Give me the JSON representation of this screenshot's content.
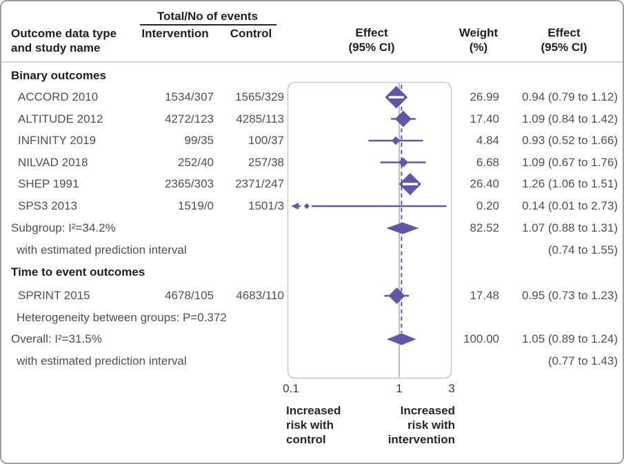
{
  "header": {
    "events_group": "Total/No of events",
    "outcome_line1": "Outcome data type",
    "outcome_line2": "and study name",
    "intervention": "Intervention",
    "control": "Control",
    "effect_plot_line1": "Effect",
    "effect_plot_line2": "(95% CI)",
    "weight_line1": "Weight",
    "weight_line2": "(%)",
    "effect_text_line1": "Effect",
    "effect_text_line2": "(95% CI)"
  },
  "axis": {
    "ticks": [
      "0.1",
      "1",
      "3"
    ],
    "left_caption_lines": [
      "Increased",
      "risk with",
      "control"
    ],
    "right_caption_lines": [
      "Increased",
      "risk with",
      "intervention"
    ]
  },
  "colors": {
    "accent": "#6456a5",
    "box_border": "#c7c7c7",
    "ref_line": "#a8a8a8",
    "divider": "#d6d6d6",
    "text": "#4f4f50",
    "heading_text": "#1e1e1e"
  },
  "chart_data": {
    "type": "forest",
    "x_scale": "log",
    "x_ticks": [
      0.1,
      1,
      3
    ],
    "x_range": [
      0.1,
      3
    ],
    "reference_value": 1,
    "overall_dashed_value": 1.05,
    "left_caption": "Increased risk with control",
    "right_caption": "Increased risk with intervention",
    "rows": [
      {
        "kind": "section",
        "label": "Binary outcomes"
      },
      {
        "kind": "study",
        "label": "ACCORD 2010",
        "intervention": "1534/307",
        "control": "1565/329",
        "effect": 0.94,
        "ci": [
          0.79,
          1.12
        ],
        "weight": 26.99,
        "weight_text": "26.99",
        "effect_text": "0.94 (0.79 to 1.12)"
      },
      {
        "kind": "study",
        "label": "ALTITUDE 2012",
        "intervention": "4272/123",
        "control": "4285/113",
        "effect": 1.09,
        "ci": [
          0.84,
          1.42
        ],
        "weight": 17.4,
        "weight_text": "17.40",
        "effect_text": "1.09 (0.84 to 1.42)"
      },
      {
        "kind": "study",
        "label": "INFINITY 2019",
        "intervention": "99/35",
        "control": "100/37",
        "effect": 0.93,
        "ci": [
          0.52,
          1.66
        ],
        "weight": 4.84,
        "weight_text": "4.84",
        "effect_text": "0.93 (0.52 to 1.66)"
      },
      {
        "kind": "study",
        "label": "NILVAD 2018",
        "intervention": "252/40",
        "control": "257/38",
        "effect": 1.09,
        "ci": [
          0.67,
          1.76
        ],
        "weight": 6.68,
        "weight_text": "6.68",
        "effect_text": "1.09 (0.67 to 1.76)"
      },
      {
        "kind": "study",
        "label": "SHEP 1991",
        "intervention": "2365/303",
        "control": "2371/247",
        "effect": 1.26,
        "ci": [
          1.06,
          1.51
        ],
        "weight": 26.4,
        "weight_text": "26.40",
        "effect_text": "1.26 (1.06 to 1.51)"
      },
      {
        "kind": "study",
        "label": "SPS3 2013",
        "intervention": "1519/0",
        "control": "1501/3",
        "effect": 0.14,
        "ci": [
          0.01,
          2.73
        ],
        "weight": 0.2,
        "weight_text": "0.20",
        "effect_text": "0.14 (0.01 to 2.73)"
      },
      {
        "kind": "summary",
        "label": "Subgroup: I²=34.2%",
        "effect": 1.07,
        "ci": [
          0.88,
          1.31
        ],
        "weight_text": "82.52",
        "effect_text": "1.07 (0.88 to 1.31)"
      },
      {
        "kind": "note",
        "label": "with estimated prediction interval",
        "effect_text": "(0.74 to 1.55)"
      },
      {
        "kind": "section",
        "label": "Time to event outcomes"
      },
      {
        "kind": "study",
        "label": "SPRINT 2015",
        "intervention": "4678/105",
        "control": "4683/110",
        "effect": 0.95,
        "ci": [
          0.73,
          1.23
        ],
        "weight": 17.48,
        "weight_text": "17.48",
        "effect_text": "0.95 (0.73 to 1.23)"
      },
      {
        "kind": "note",
        "label": "Heterogeneity between groups: P=0.372"
      },
      {
        "kind": "summary",
        "label": "Overall: I²=31.5%",
        "effect": 1.05,
        "ci": [
          0.89,
          1.24
        ],
        "weight_text": "100.00",
        "effect_text": "1.05 (0.89 to 1.24)"
      },
      {
        "kind": "note",
        "label": "with estimated prediction interval",
        "effect_text": "(0.77 to 1.43)"
      }
    ]
  }
}
